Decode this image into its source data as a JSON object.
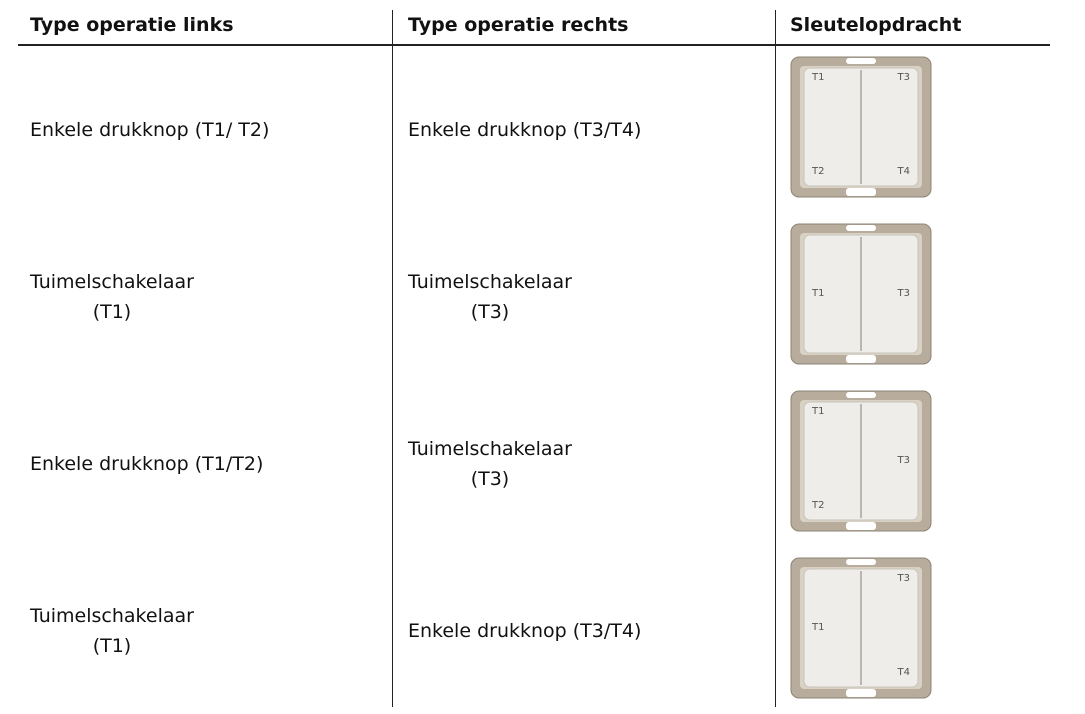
{
  "header": {
    "columns": [
      "Type operatie links",
      "Type operatie rechts",
      "Sleutelopdracht"
    ]
  },
  "rows": [
    {
      "left": [
        "Enkele drukknop (T1/ T2)"
      ],
      "right": [
        "Enkele drukknop (T3/T4)"
      ],
      "switch": {
        "top_left": "T1",
        "top_right": "T3",
        "bottom_left": "T2",
        "bottom_right": "T4"
      }
    },
    {
      "left": [
        "Tuimelschakelaar",
        "(T1)"
      ],
      "right": [
        "Tuimelschakelaar",
        "(T3)"
      ],
      "switch": {
        "middle_left": "T1",
        "middle_right": "T3"
      }
    },
    {
      "left": [
        "Enkele drukknop (T1/T2)"
      ],
      "right": [
        "Tuimelschakelaar",
        "(T3)"
      ],
      "switch": {
        "top_left": "T1",
        "middle_right": "T3",
        "bottom_left": "T2"
      }
    },
    {
      "left": [
        "Tuimelschakelaar",
        "(T1)"
      ],
      "right": [
        "Enkele drukknop (T3/T4)"
      ],
      "switch": {
        "top_right": "T3",
        "middle_left": "T1",
        "bottom_right": "T4"
      }
    }
  ]
}
